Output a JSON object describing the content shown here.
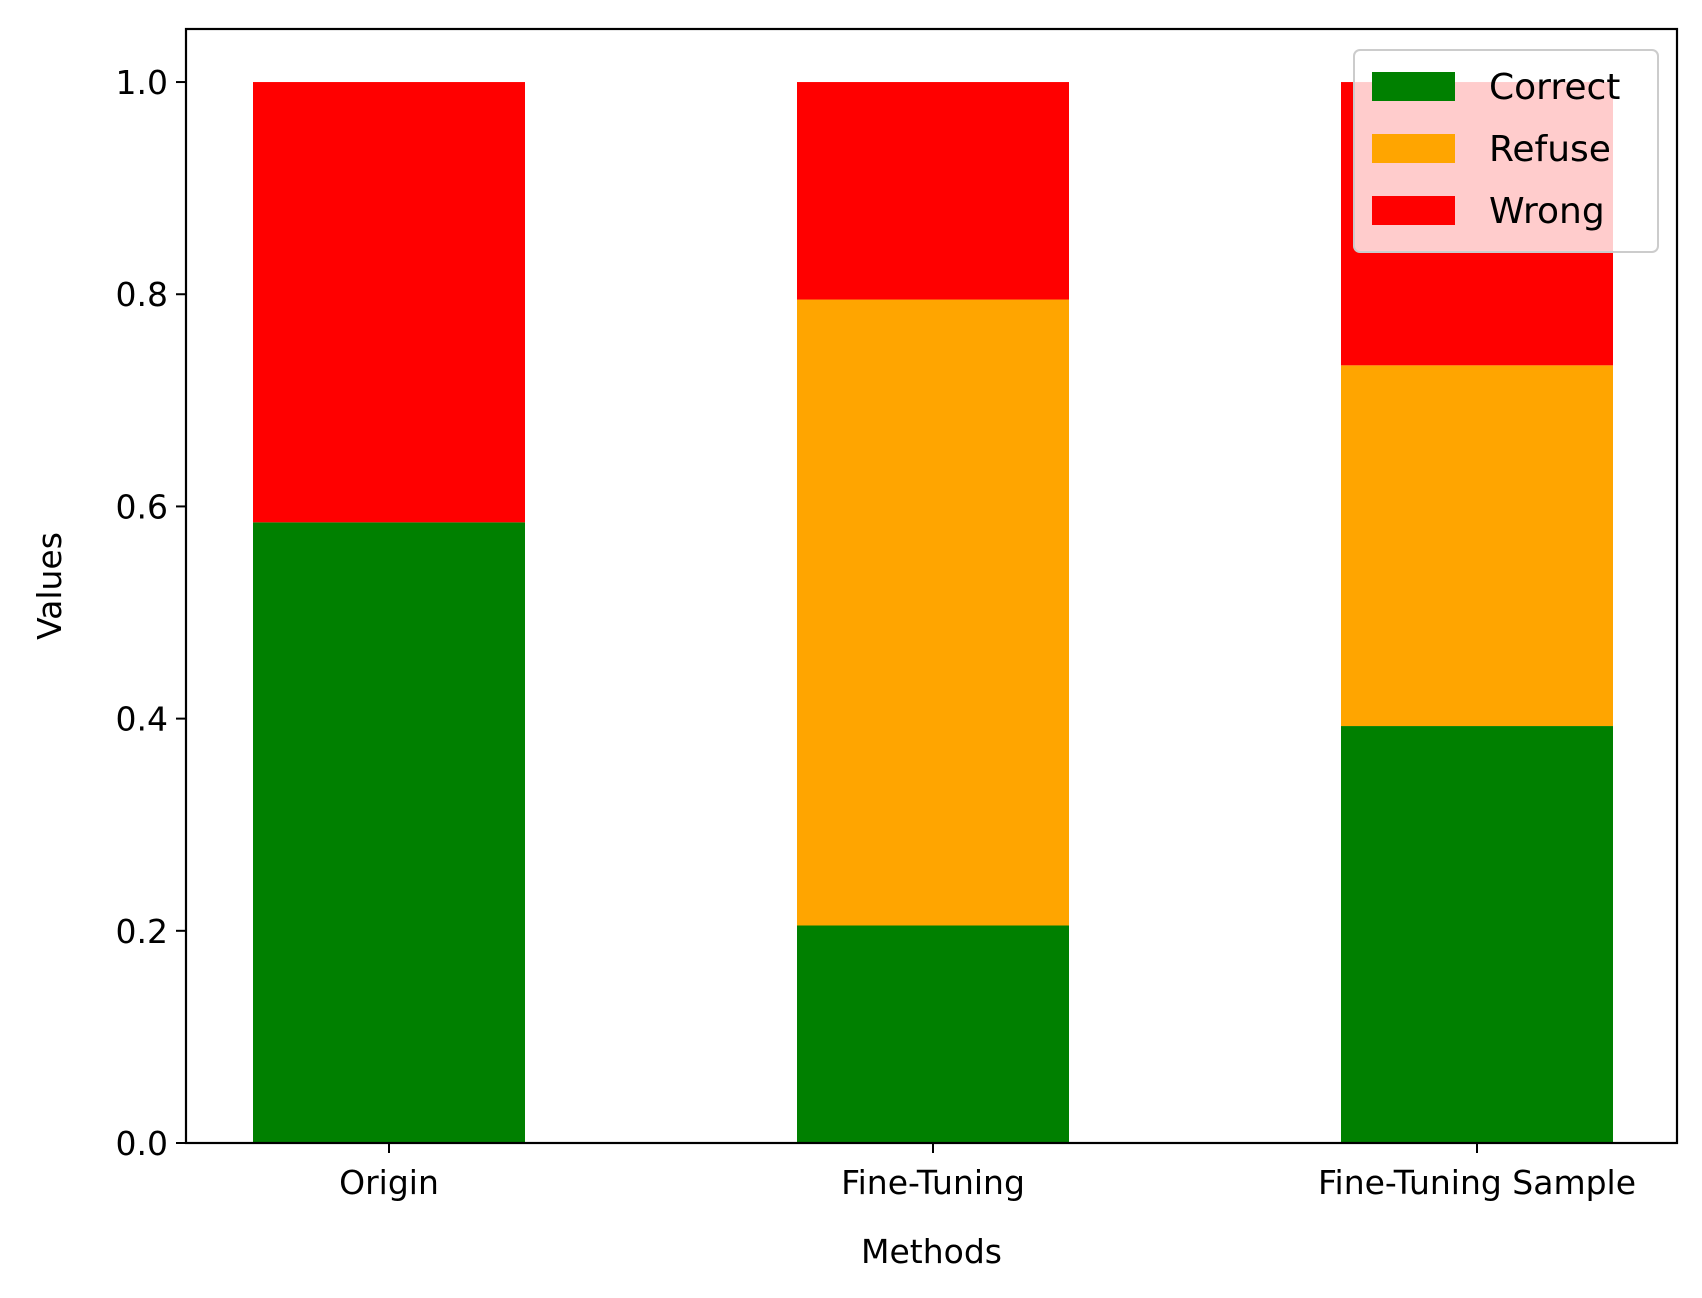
{
  "chart_data": {
    "type": "bar",
    "stacked": true,
    "categories": [
      "Origin",
      "Fine-Tuning",
      "Fine-Tuning Sample"
    ],
    "series": [
      {
        "name": "Correct",
        "color": "#008000",
        "values": [
          0.585,
          0.205,
          0.393
        ]
      },
      {
        "name": "Refuse",
        "color": "#ffa500",
        "values": [
          0.0,
          0.59,
          0.34
        ]
      },
      {
        "name": "Wrong",
        "color": "#ff0000",
        "values": [
          0.415,
          0.205,
          0.267
        ]
      }
    ],
    "title": "",
    "xlabel": "Methods",
    "ylabel": "Values",
    "ylim": [
      0,
      1.05
    ],
    "yticks": [
      "0.0",
      "0.2",
      "0.4",
      "0.6",
      "0.8",
      "1.0"
    ],
    "grid": false,
    "legend": "top-right"
  }
}
